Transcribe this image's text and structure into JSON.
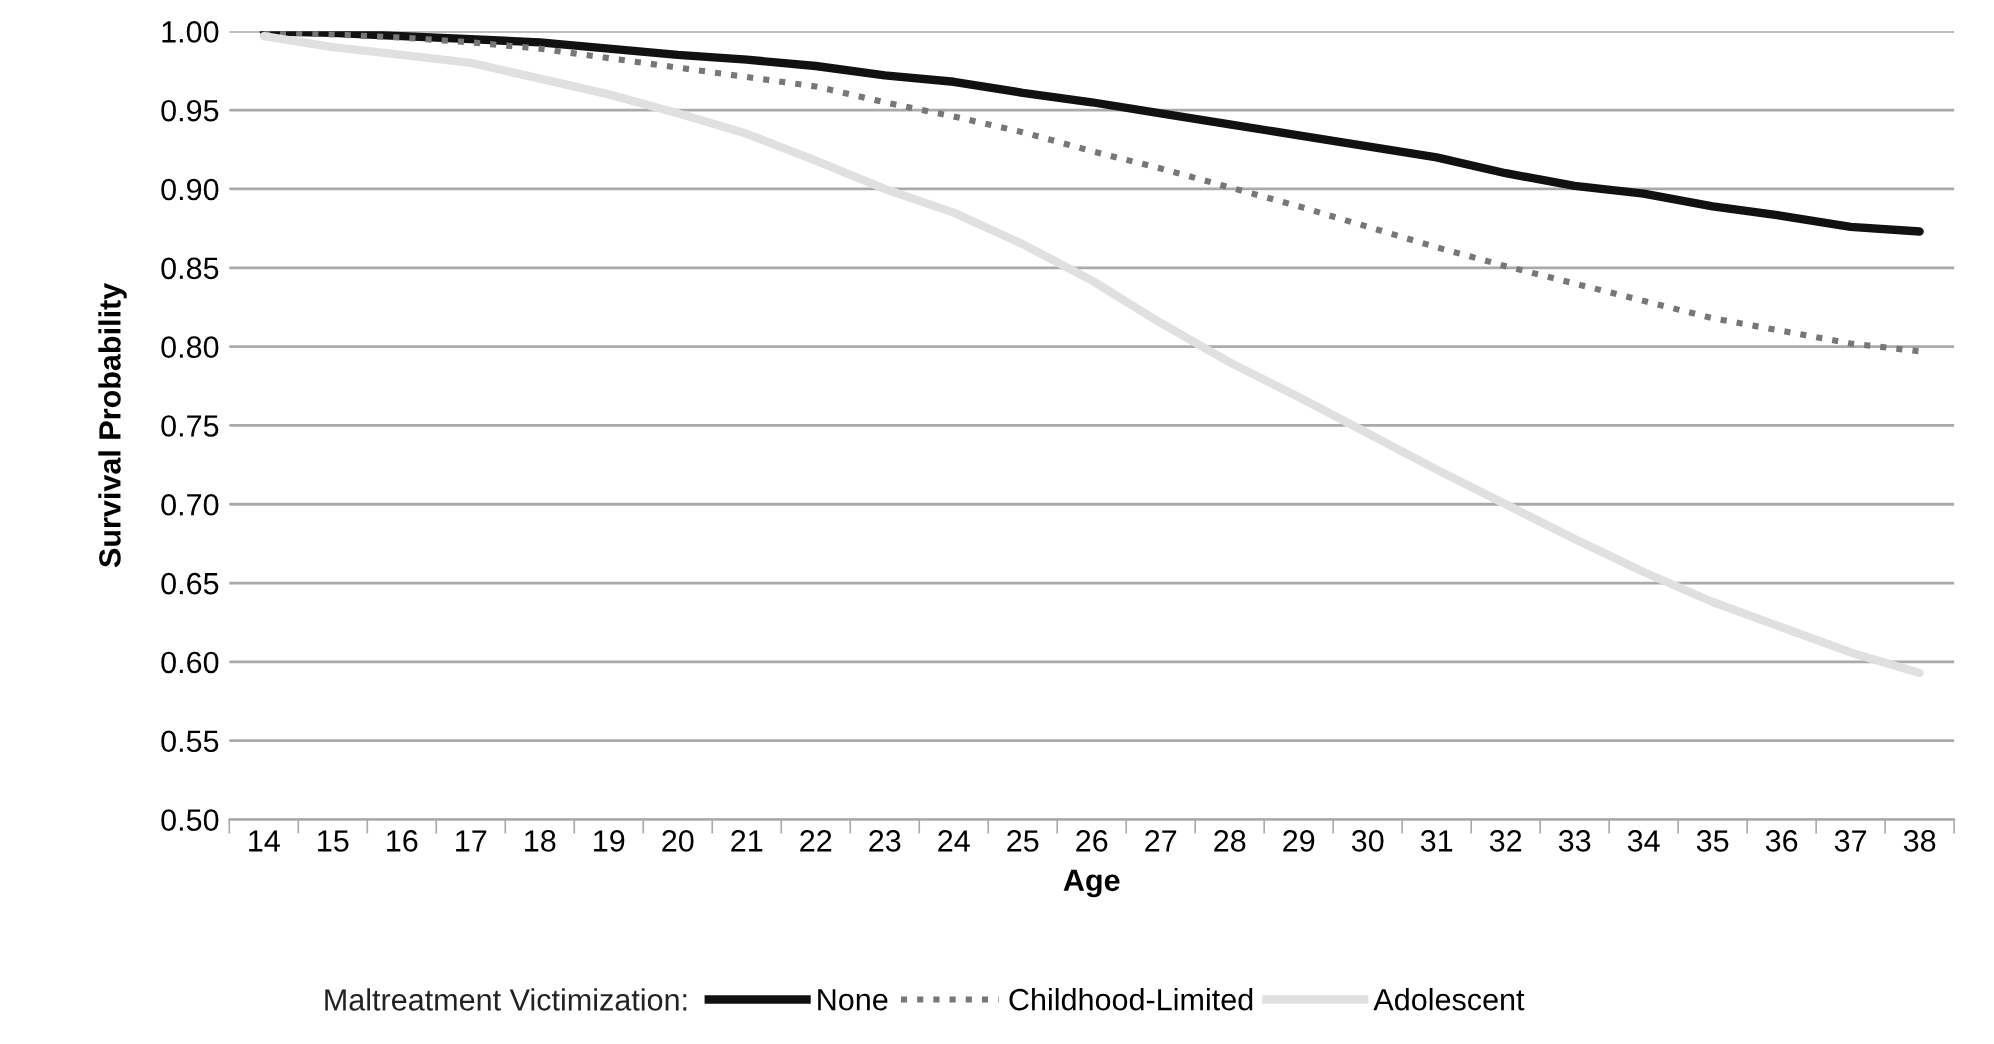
{
  "chart_data": {
    "type": "line",
    "xlabel": "Age",
    "ylabel": "Survival Probability",
    "legend_title": "Maltreatment Victimization:",
    "legend": "bottom",
    "grid": "y",
    "marker": "none",
    "categories": [
      "14",
      "15",
      "16",
      "17",
      "18",
      "19",
      "20",
      "21",
      "22",
      "23",
      "24",
      "25",
      "26",
      "27",
      "28",
      "29",
      "30",
      "31",
      "32",
      "33",
      "34",
      "35",
      "36",
      "37",
      "38"
    ],
    "ylim": [
      0.5,
      1.0
    ],
    "yticks": [
      {
        "value": 0.5,
        "label": "0.50"
      },
      {
        "value": 0.55,
        "label": "0.55"
      },
      {
        "value": 0.6,
        "label": "0.60"
      },
      {
        "value": 0.65,
        "label": "0.65"
      },
      {
        "value": 0.7,
        "label": "0.70"
      },
      {
        "value": 0.75,
        "label": "0.75"
      },
      {
        "value": 0.8,
        "label": "0.80"
      },
      {
        "value": 0.85,
        "label": "0.85"
      },
      {
        "value": 0.9,
        "label": "0.90"
      },
      {
        "value": 0.95,
        "label": "0.95"
      },
      {
        "value": 1.0,
        "label": "1.00"
      }
    ],
    "series": [
      {
        "name": "None",
        "color": "#111111",
        "line_style": "solid",
        "values": [
          1.0,
          0.999,
          0.997,
          0.995,
          0.993,
          0.989,
          0.985,
          0.982,
          0.978,
          0.972,
          0.968,
          0.961,
          0.955,
          0.948,
          0.941,
          0.934,
          0.927,
          0.92,
          0.91,
          0.902,
          0.897,
          0.889,
          0.883,
          0.876,
          0.873
        ]
      },
      {
        "name": "Childhood-Limited",
        "color": "#777777",
        "line_style": "dotted",
        "values": [
          1.0,
          0.998,
          0.996,
          0.993,
          0.989,
          0.983,
          0.977,
          0.971,
          0.965,
          0.955,
          0.946,
          0.936,
          0.924,
          0.913,
          0.901,
          0.889,
          0.876,
          0.863,
          0.851,
          0.84,
          0.829,
          0.818,
          0.81,
          0.802,
          0.797
        ]
      },
      {
        "name": "Adolescent",
        "color": "#e0e0e0",
        "line_style": "solid",
        "values": [
          0.997,
          0.99,
          0.985,
          0.98,
          0.97,
          0.96,
          0.948,
          0.935,
          0.918,
          0.9,
          0.885,
          0.865,
          0.842,
          0.815,
          0.79,
          0.768,
          0.745,
          0.722,
          0.7,
          0.678,
          0.657,
          0.638,
          0.622,
          0.606,
          0.593
        ]
      }
    ]
  }
}
